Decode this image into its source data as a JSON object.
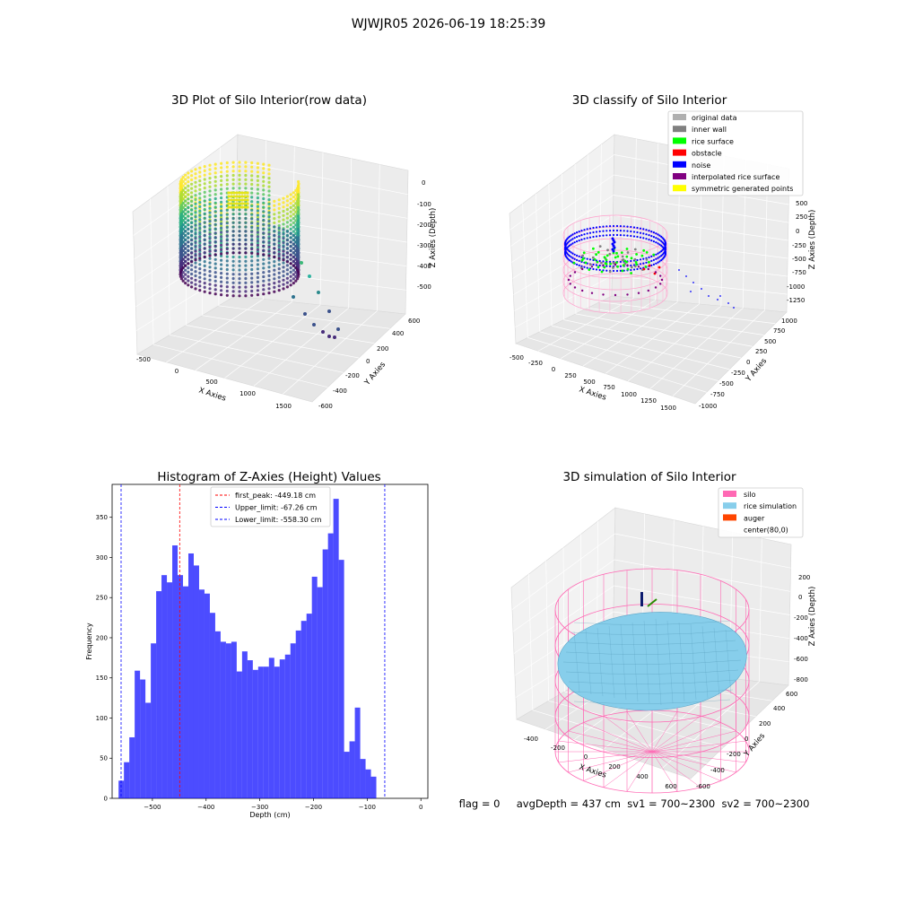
{
  "suptitle": "WJWJR05 2026-06-19 18:25:39",
  "chart_data": [
    {
      "type": "scatter3d",
      "title": "3D Plot of Silo Interior(row data)",
      "xlabel": "X Axies",
      "ylabel": "Y Axies",
      "zlabel": "Z Axies (Depth)",
      "xticks": [
        "-500",
        "0",
        "500",
        "1000",
        "1500"
      ],
      "yticks": [
        "600",
        "400",
        "200",
        "0",
        "-200",
        "-400",
        "-600"
      ],
      "zticks": [
        "0",
        "-100",
        "-200",
        "-300",
        "-400",
        "-500"
      ],
      "colormap": "viridis",
      "grid": true
    },
    {
      "type": "scatter3d",
      "title": "3D classify of Silo Interior",
      "xlabel": "X Axies",
      "ylabel": "Y Axies",
      "zlabel": "Z Axies (Depth)",
      "xticks": [
        "-500",
        "-250",
        "0",
        "250",
        "500",
        "750",
        "1000",
        "1250",
        "1500"
      ],
      "yticks": [
        "1000",
        "750",
        "500",
        "250",
        "0",
        "-250",
        "-500",
        "-750",
        "-1000"
      ],
      "zticks": [
        "500",
        "250",
        "0",
        "-250",
        "-500",
        "-750",
        "-1000",
        "-1250"
      ],
      "legend_position": "top-right",
      "legend": [
        {
          "label": "original data",
          "color": "#b0b0b0"
        },
        {
          "label": "inner wall",
          "color": "#808080"
        },
        {
          "label": "rice surface",
          "color": "#00ff00"
        },
        {
          "label": "obstacle",
          "color": "#ff0000"
        },
        {
          "label": "noise",
          "color": "#0000ff"
        },
        {
          "label": "interpolated rice surface",
          "color": "#800080"
        },
        {
          "label": "symmetric generated points",
          "color": "#ffff00"
        }
      ],
      "grid": true
    },
    {
      "type": "bar",
      "title": "Histogram of Z-Axies (Height) Values",
      "xlabel": "Depth (cm)",
      "ylabel": "Frequency",
      "bin_width": 10,
      "first_bin_start": -563,
      "values": [
        22,
        45,
        76,
        159,
        148,
        119,
        193,
        258,
        278,
        269,
        315,
        278,
        264,
        305,
        290,
        260,
        255,
        231,
        208,
        195,
        193,
        195,
        158,
        183,
        172,
        160,
        164,
        164,
        175,
        164,
        173,
        179,
        193,
        209,
        221,
        230,
        276,
        263,
        310,
        330,
        373,
        297,
        58,
        71,
        113,
        49,
        36,
        27
      ],
      "bar_color": "#0000ff",
      "xticks": [
        -500,
        -400,
        -300,
        -200,
        -100,
        0
      ],
      "xtick_labels": [
        "−500",
        "−400",
        "−300",
        "−200",
        "−100",
        "0"
      ],
      "xlim": [
        -575,
        13
      ],
      "yticks": [
        0,
        50,
        100,
        150,
        200,
        250,
        300,
        350
      ],
      "ylim": [
        0,
        391
      ],
      "vlines": [
        {
          "label": "first_peak: -449.18 cm",
          "x": -449.18,
          "color": "#ff0000"
        },
        {
          "label": "Upper_limit: -67.26 cm",
          "x": -67.26,
          "color": "#0000ff"
        },
        {
          "label": "Lower_limit: -558.30 cm",
          "x": -558.3,
          "color": "#0000ff"
        }
      ],
      "legend_position": "top-center"
    },
    {
      "type": "surface3d",
      "title": "3D simulation of Silo Interior",
      "xlabel": "X Axies",
      "ylabel": "Y Axies",
      "zlabel": "Z Axies (Depth)",
      "xticks": [
        "-400",
        "-200",
        "0",
        "200",
        "400",
        "600"
      ],
      "yticks": [
        "600",
        "400",
        "200",
        "0",
        "-200",
        "-400",
        "-600"
      ],
      "zticks": [
        "200",
        "0",
        "-200",
        "-400",
        "-600",
        "-800"
      ],
      "legend_position": "top-right",
      "legend": [
        {
          "label": "silo",
          "color": "#ff69b4"
        },
        {
          "label": "rice simulation",
          "color": "#87ceeb"
        },
        {
          "label": "auger",
          "color": "#ff4500"
        },
        {
          "label": "center(80,0)",
          "color": ""
        }
      ],
      "grid": true
    }
  ],
  "footer_text": "flag = 0     avgDepth = 437 cm  sv1 = 700~2300  sv2 = 700~2300"
}
